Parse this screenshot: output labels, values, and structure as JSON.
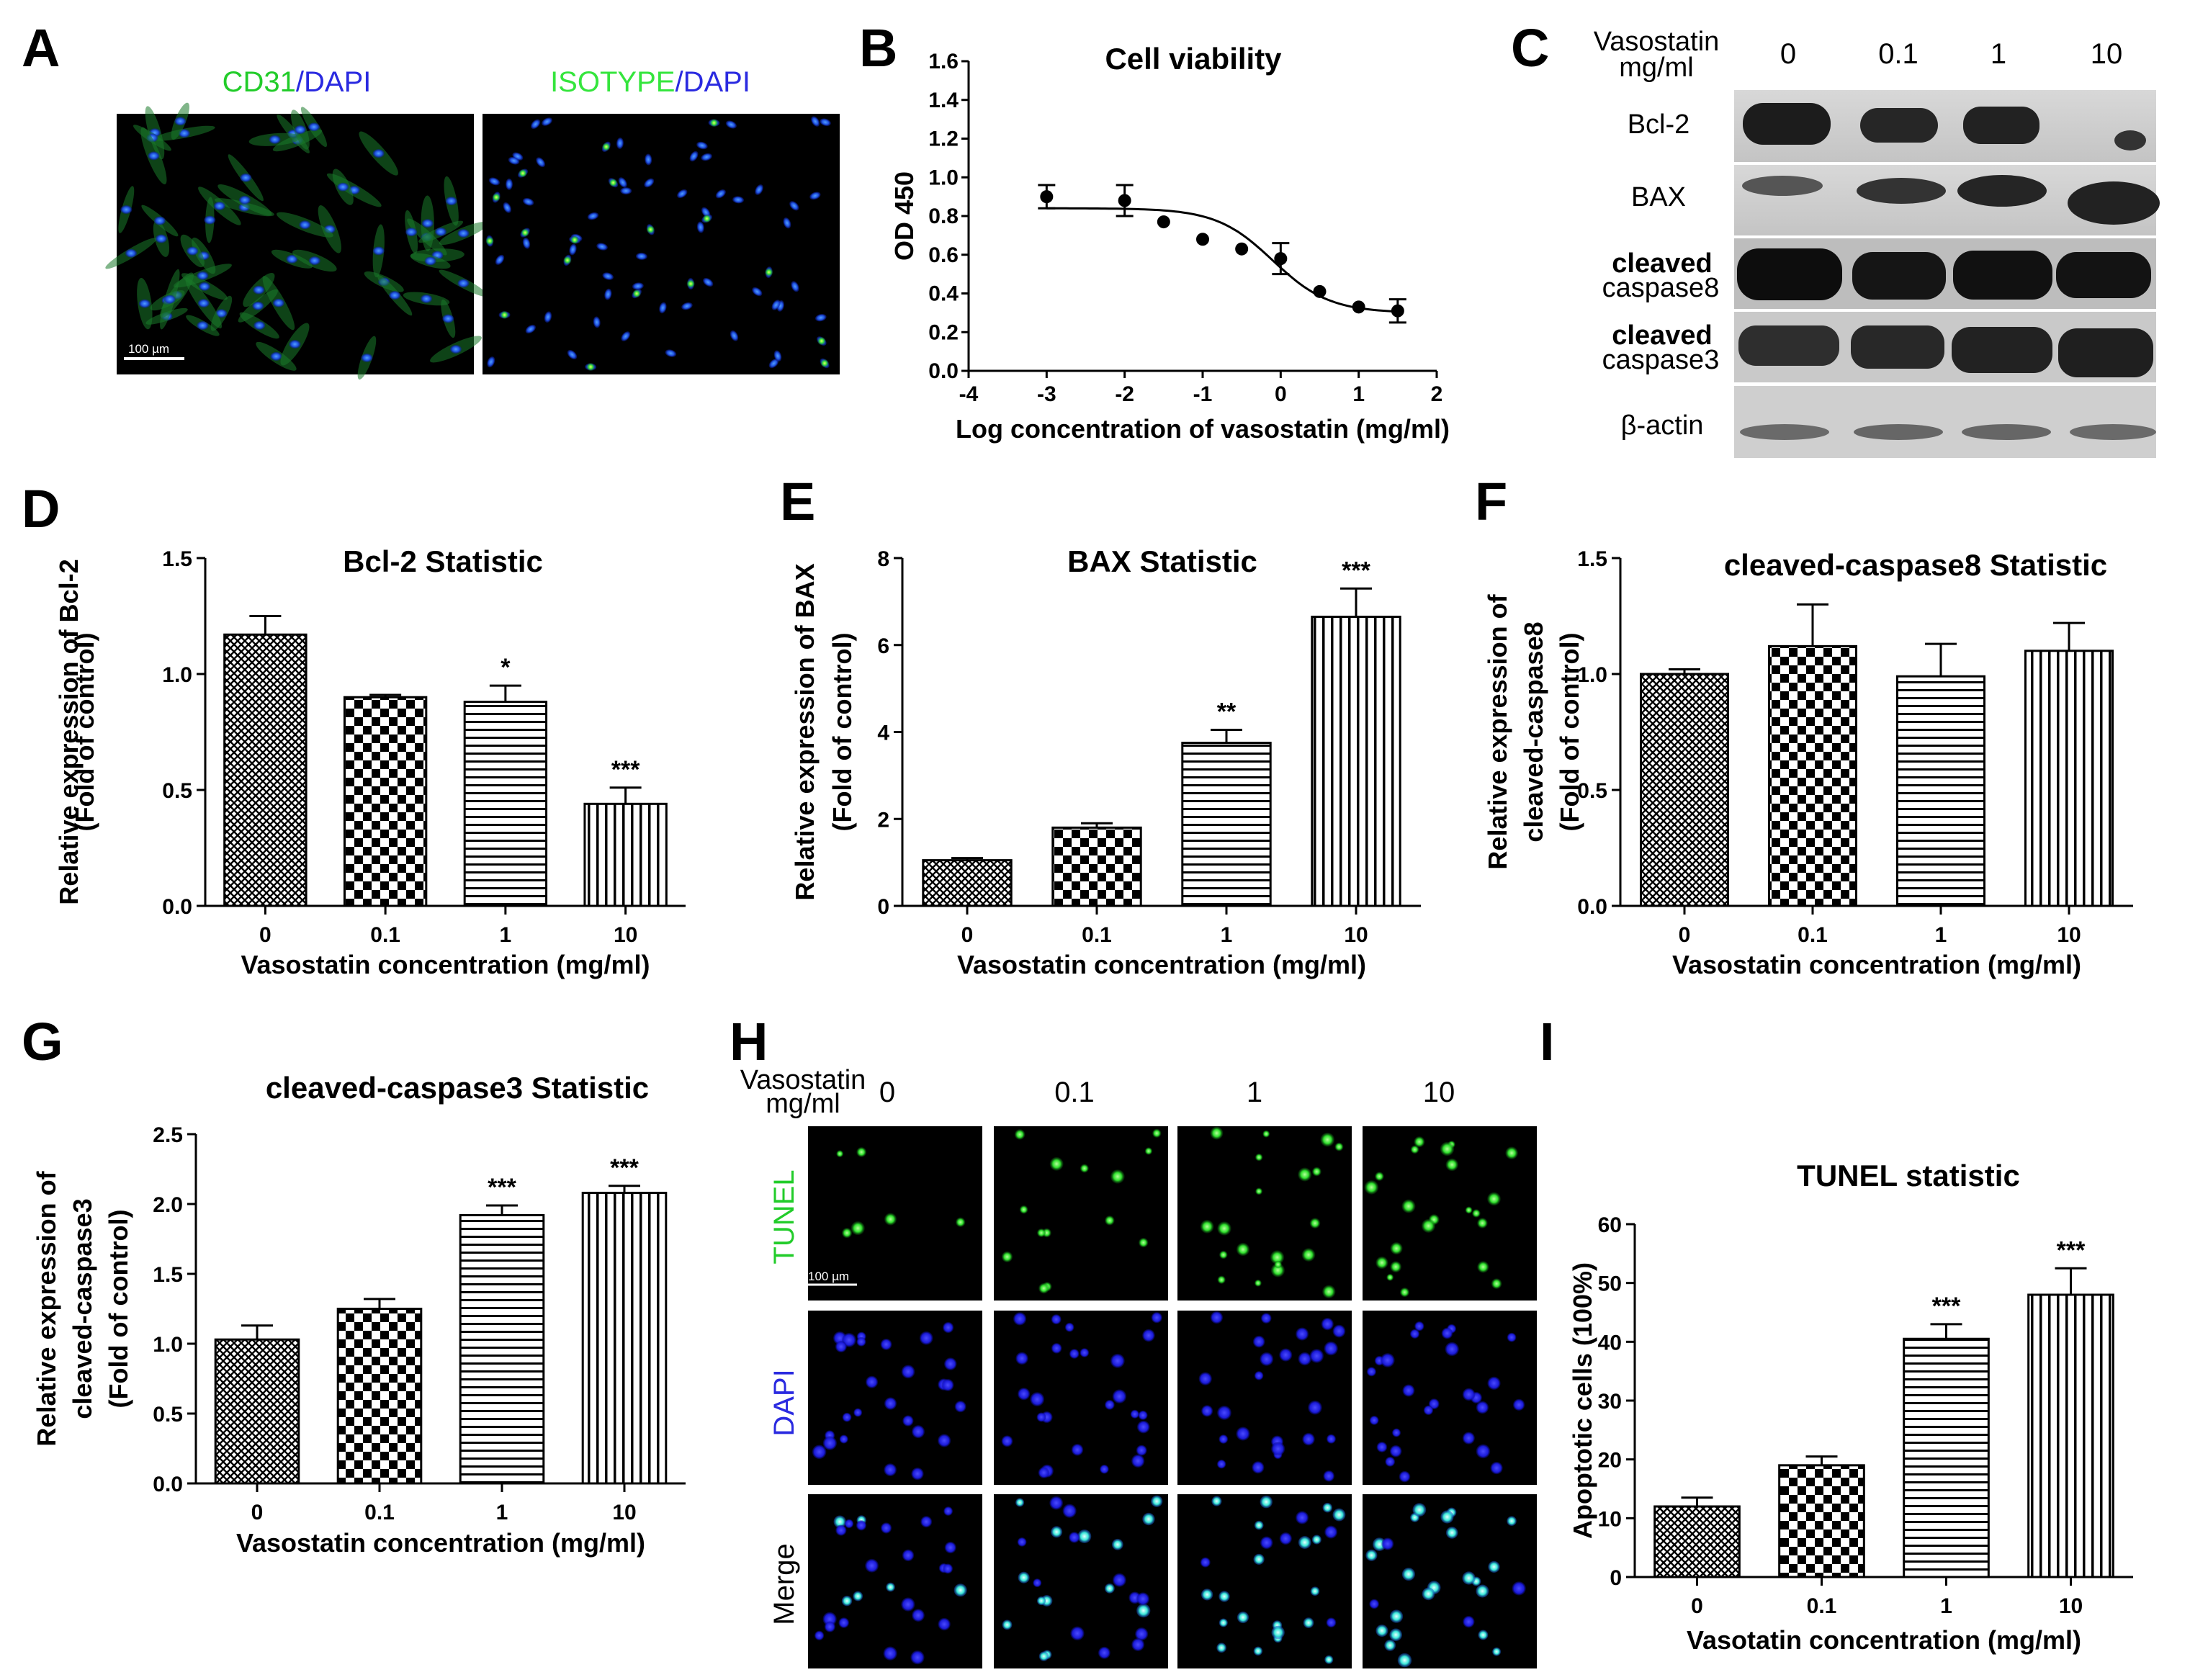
{
  "panels": {
    "A": "A",
    "B": "B",
    "C": "C",
    "D": "D",
    "E": "E",
    "F": "F",
    "G": "G",
    "H": "H",
    "I": "I"
  },
  "colors": {
    "green": "#22cc2a",
    "blue": "#2a2ae0",
    "bright_green": "#35e53d",
    "bar_edge": "#000000"
  },
  "panelA": {
    "left_label_1": "CD31",
    "left_sep": "/",
    "left_label_2": "DAPI",
    "right_label_1": "ISOTYPE",
    "right_sep": "/",
    "right_label_2": "DAPI",
    "scale_bar": "100 µm"
  },
  "panelC": {
    "header_1": "Vasostatin",
    "header_2": "mg/ml",
    "concentrations": [
      "0",
      "0.1",
      "1",
      "10"
    ],
    "rows": [
      {
        "line1": "Bcl-2",
        "line2": ""
      },
      {
        "line1": "BAX",
        "line2": ""
      },
      {
        "line1": "cleaved",
        "line2": "caspase8"
      },
      {
        "line1": "cleaved",
        "line2": "caspase3"
      },
      {
        "line1": "β-actin",
        "line2": ""
      }
    ]
  },
  "panelH": {
    "header_1": "Vasostatin",
    "header_2": "mg/ml",
    "concentrations": [
      "0",
      "0.1",
      "1",
      "10"
    ],
    "row_labels": [
      "TUNEL",
      "DAPI",
      "Merge"
    ],
    "scale_bar": "100 µm"
  },
  "chart_data": [
    {
      "id": "B",
      "type": "scatter",
      "title": "Cell viability",
      "xlabel": "Log concentration of vasostatin (mg/ml)",
      "ylabel": "OD 450",
      "xlim": [
        -4,
        2
      ],
      "ylim": [
        0,
        1.6
      ],
      "xticks": [
        "-4",
        "-3",
        "-2",
        "-1",
        "0",
        "1",
        "2"
      ],
      "yticks": [
        "0.0",
        "0.2",
        "0.4",
        "0.6",
        "0.8",
        "1.0",
        "1.2",
        "1.4",
        "1.6"
      ],
      "x": [
        -3,
        -2,
        -1.5,
        -1,
        -0.5,
        0,
        0.5,
        1,
        1.5
      ],
      "y": [
        0.9,
        0.88,
        0.77,
        0.68,
        0.63,
        0.58,
        0.41,
        0.33,
        0.31
      ],
      "err": [
        0.06,
        0.08,
        0,
        0,
        0,
        0.08,
        0,
        0,
        0.06
      ],
      "fit": {
        "top": 0.84,
        "bottom": 0.3,
        "logEC50": -0.1,
        "hill": 1.2
      }
    },
    {
      "id": "D",
      "type": "bar",
      "title": "Bcl-2 Statistic",
      "ylabel": [
        "Relative expression of Bcl-2",
        "(Fold of control)"
      ],
      "xlabel": "Vasostatin concentration (mg/ml)",
      "categories": [
        "0",
        "0.1",
        "1",
        "10"
      ],
      "values": [
        1.17,
        0.9,
        0.88,
        0.44
      ],
      "errors": [
        0.08,
        0.01,
        0.07,
        0.07
      ],
      "significance": [
        "",
        "",
        "*",
        "***"
      ],
      "ylim": [
        0,
        1.5
      ],
      "yticks": [
        "0.0",
        "0.5",
        "1.0",
        "1.5"
      ]
    },
    {
      "id": "E",
      "type": "bar",
      "title": "BAX Statistic",
      "ylabel": [
        "Relative expression of BAX",
        "(Fold of control)"
      ],
      "xlabel": "Vasostatin concentration (mg/ml)",
      "categories": [
        "0",
        "0.1",
        "1",
        "10"
      ],
      "values": [
        1.05,
        1.8,
        3.75,
        6.65
      ],
      "errors": [
        0.05,
        0.1,
        0.3,
        0.65
      ],
      "significance": [
        "",
        "",
        "**",
        "***"
      ],
      "ylim": [
        0,
        8
      ],
      "yticks": [
        "0",
        "2",
        "4",
        "6",
        "8"
      ]
    },
    {
      "id": "F",
      "type": "bar",
      "title": "cleaved-caspase8 Statistic",
      "ylabel": [
        "Relative expression of",
        "cleaved-caspase8",
        "(Fold of control)"
      ],
      "xlabel": "Vasostatin concentration (mg/ml)",
      "categories": [
        "0",
        "0.1",
        "1",
        "10"
      ],
      "values": [
        1.0,
        1.12,
        0.99,
        1.1
      ],
      "errors": [
        0.02,
        0.18,
        0.14,
        0.12
      ],
      "significance": [
        "",
        "",
        "",
        ""
      ],
      "ylim": [
        0,
        1.5
      ],
      "yticks": [
        "0.0",
        "0.5",
        "1.0",
        "1.5"
      ]
    },
    {
      "id": "G",
      "type": "bar",
      "title": "cleaved-caspase3 Statistic",
      "ylabel": [
        "Relative expression of",
        "cleaved-caspase3",
        "(Fold of control)"
      ],
      "xlabel": "Vasostatin concentration (mg/ml)",
      "categories": [
        "0",
        "0.1",
        "1",
        "10"
      ],
      "values": [
        1.03,
        1.25,
        1.92,
        2.08
      ],
      "errors": [
        0.1,
        0.07,
        0.07,
        0.05
      ],
      "significance": [
        "",
        "",
        "***",
        "***"
      ],
      "ylim": [
        0,
        2.5
      ],
      "yticks": [
        "0.0",
        "0.5",
        "1.0",
        "1.5",
        "2.0",
        "2.5"
      ]
    },
    {
      "id": "I",
      "type": "bar",
      "title": "TUNEL statistic",
      "ylabel": [
        "Apoptotic cells (100%)"
      ],
      "xlabel": "Vasotatin concentration (mg/ml)",
      "categories": [
        "0",
        "0.1",
        "1",
        "10"
      ],
      "values": [
        12,
        19,
        40.5,
        48
      ],
      "errors": [
        1.5,
        1.5,
        2.5,
        4.5
      ],
      "significance": [
        "",
        "",
        "***",
        "***"
      ],
      "ylim": [
        0,
        60
      ],
      "yticks": [
        "0",
        "10",
        "20",
        "30",
        "40",
        "50",
        "60"
      ]
    }
  ]
}
